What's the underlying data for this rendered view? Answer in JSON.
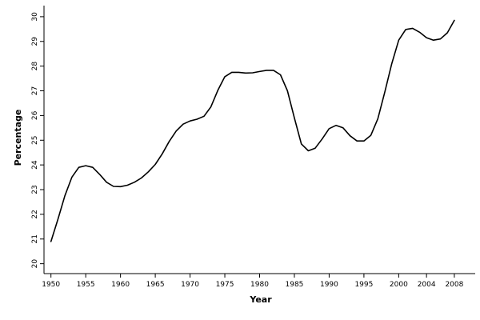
{
  "chart_data": {
    "type": "line",
    "title": "",
    "xlabel": "Year",
    "ylabel": "Percentage",
    "xlim": [
      1949,
      2011
    ],
    "ylim": [
      19.6,
      30.45
    ],
    "grid": false,
    "x_ticks": [
      1950,
      1955,
      1960,
      1965,
      1970,
      1975,
      1980,
      1985,
      1990,
      1995,
      2000,
      2004,
      2008
    ],
    "y_ticks": [
      20,
      21,
      22,
      23,
      24,
      25,
      26,
      27,
      28,
      29,
      30
    ],
    "series": [
      {
        "x": [
          1950,
          1951,
          1952,
          1953,
          1954,
          1955,
          1956,
          1957,
          1958,
          1959,
          1960,
          1961,
          1962,
          1963,
          1964,
          1965,
          1966,
          1967,
          1968,
          1969,
          1970,
          1971,
          1972,
          1973,
          1974,
          1975,
          1976,
          1977,
          1978,
          1979,
          1980,
          1981,
          1982,
          1983,
          1984,
          1985,
          1986,
          1987,
          1988,
          1989,
          1990,
          1991,
          1992,
          1993,
          1994,
          1995,
          1996,
          1997,
          1998,
          1999,
          2000,
          2001,
          2002,
          2003,
          2004,
          2005,
          2006,
          2007,
          2008
        ],
        "values": [
          20.9,
          21.8,
          22.75,
          23.5,
          23.9,
          23.97,
          23.9,
          23.62,
          23.3,
          23.13,
          23.12,
          23.18,
          23.3,
          23.47,
          23.72,
          24.02,
          24.45,
          24.95,
          25.37,
          25.65,
          25.78,
          25.85,
          25.97,
          26.35,
          27.02,
          27.57,
          27.75,
          27.75,
          27.72,
          27.73,
          27.78,
          27.83,
          27.83,
          27.65,
          27.0,
          25.9,
          24.85,
          24.57,
          24.68,
          25.05,
          25.47,
          25.6,
          25.5,
          25.18,
          24.97,
          24.97,
          25.2,
          25.87,
          26.95,
          28.1,
          29.05,
          29.48,
          29.53,
          29.37,
          29.15,
          29.05,
          29.1,
          29.35,
          29.85
        ]
      }
    ]
  }
}
